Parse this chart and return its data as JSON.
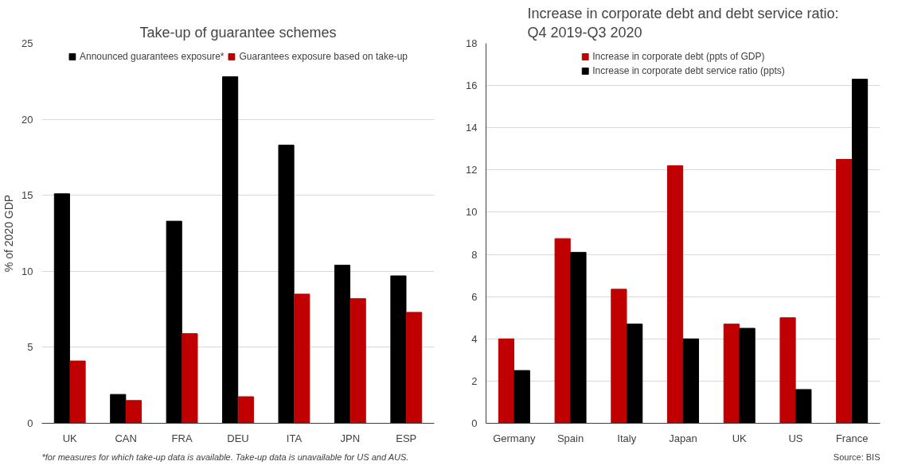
{
  "chart_data": [
    {
      "type": "bar",
      "title": "Take-up of guarantee schemes",
      "ylabel": "% of 2020 GDP",
      "categories": [
        "UK",
        "CAN",
        "FRA",
        "DEU",
        "ITA",
        "JPN",
        "ESP"
      ],
      "series": [
        {
          "name": "Announced guarantees exposure*",
          "color": "#000000",
          "values": [
            15.1,
            1.9,
            13.3,
            22.8,
            18.3,
            10.4,
            9.7
          ]
        },
        {
          "name": "Guarantees exposure based on take-up",
          "color": "#c00000",
          "values": [
            4.1,
            1.5,
            5.9,
            1.75,
            8.5,
            8.2,
            7.3
          ]
        }
      ],
      "ylim": [
        0,
        25
      ],
      "yticks": [
        0,
        5,
        10,
        15,
        20,
        25
      ],
      "grid": "y",
      "legend": "top",
      "annotations": [
        "*for measures for which take-up data is available. Take-up data is unavailable for US and AUS."
      ]
    },
    {
      "type": "bar",
      "title": "Increase in corporate debt and debt service ratio:\nQ4 2019-Q3 2020",
      "categories": [
        "Germany",
        "Spain",
        "Italy",
        "Japan",
        "UK",
        "US",
        "France"
      ],
      "series": [
        {
          "name": "Increase in corporate debt (ppts of GDP)",
          "color": "#c00000",
          "values": [
            4.0,
            8.75,
            6.35,
            12.2,
            4.7,
            5.0,
            12.5
          ]
        },
        {
          "name": "Increase in corporate debt service ratio (ppts)",
          "color": "#000000",
          "values": [
            2.5,
            8.1,
            4.7,
            4.0,
            4.5,
            1.6,
            16.3
          ]
        }
      ],
      "ylim": [
        0,
        18
      ],
      "yticks": [
        0,
        2,
        4,
        6,
        8,
        10,
        12,
        14,
        16,
        18
      ],
      "grid": "y",
      "legend": "top",
      "annotations": [
        "Source: BIS"
      ]
    }
  ]
}
